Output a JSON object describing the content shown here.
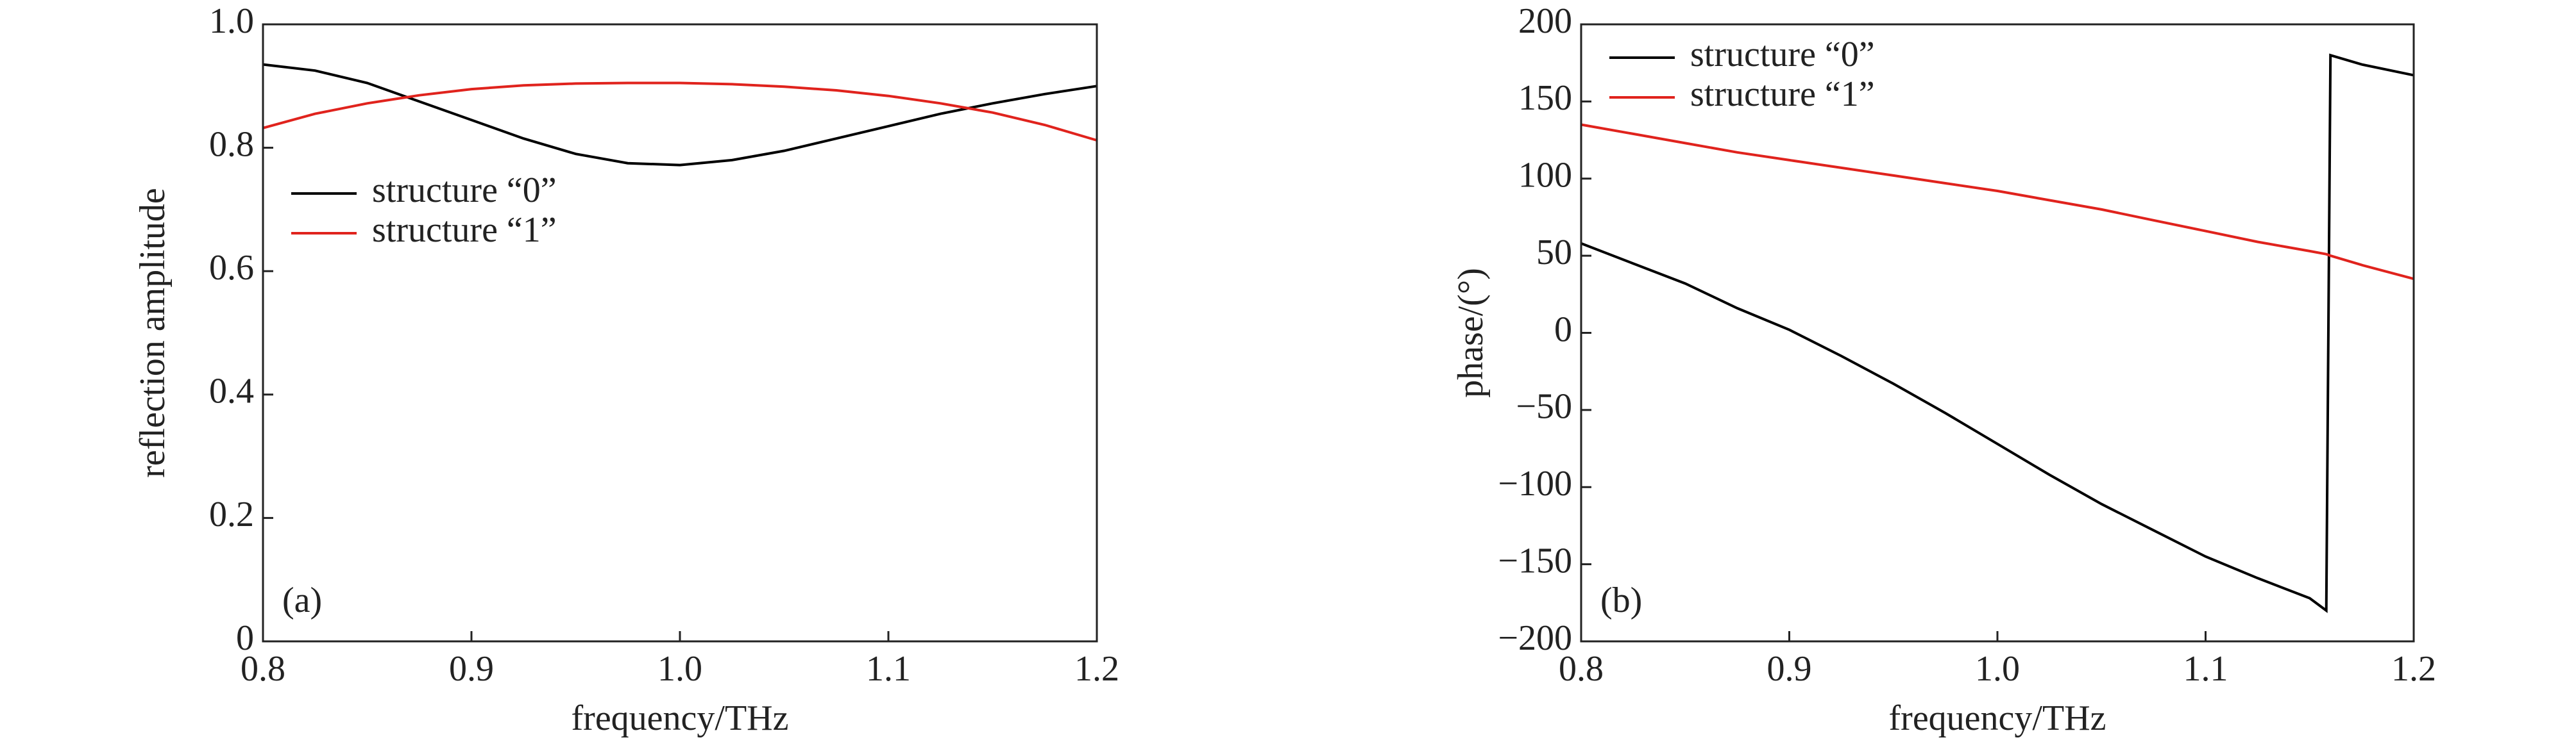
{
  "chart_data": [
    {
      "type": "line",
      "xlabel": "frequency/THz",
      "ylabel": "reflection amplitude",
      "annotation": "(a)",
      "legend": "center left",
      "x": [
        0.8,
        0.825,
        0.85,
        0.875,
        0.9,
        0.925,
        0.95,
        0.975,
        1.0,
        1.025,
        1.05,
        1.075,
        1.1,
        1.125,
        1.15,
        1.175,
        1.2
      ],
      "series": [
        {
          "name": "structure “0”",
          "color": "#000000",
          "values": [
            0.935,
            0.925,
            0.905,
            0.875,
            0.845,
            0.815,
            0.79,
            0.775,
            0.772,
            0.78,
            0.795,
            0.815,
            0.835,
            0.855,
            0.872,
            0.887,
            0.9
          ]
        },
        {
          "name": "structure “1”",
          "color": "#e0231d",
          "values": [
            0.832,
            0.855,
            0.872,
            0.885,
            0.895,
            0.901,
            0.904,
            0.905,
            0.905,
            0.903,
            0.899,
            0.893,
            0.884,
            0.872,
            0.857,
            0.837,
            0.812
          ]
        }
      ],
      "xlim": [
        0.8,
        1.2
      ],
      "xticks": [
        0.8,
        0.9,
        {
          "value": 1,
          "label": "1.0"
        },
        1.1,
        1.2
      ],
      "ylim": [
        0,
        1
      ],
      "yticks": [
        0,
        0.2,
        0.4,
        0.6,
        0.8,
        {
          "value": 1,
          "label": "1.0"
        }
      ]
    },
    {
      "type": "line",
      "xlabel": "frequency/THz",
      "ylabel": "phase/(°)",
      "annotation": "(b)",
      "legend": "upper left",
      "x": [
        0.8,
        0.825,
        0.85,
        0.875,
        0.9,
        0.925,
        0.95,
        0.975,
        1.0,
        1.025,
        1.05,
        1.075,
        1.1,
        1.125,
        1.15,
        1.158,
        1.16,
        1.175,
        1.2
      ],
      "series": [
        {
          "name": "structure “0”",
          "color": "#000000",
          "values": [
            58,
            45,
            32,
            16,
            2,
            -15,
            -33,
            -52,
            -72,
            -92,
            -111,
            -128,
            -145,
            -159,
            -172,
            -180,
            180,
            174,
            167
          ]
        },
        {
          "name": "structure “1”",
          "color": "#e0231d",
          "values": [
            135,
            129,
            123,
            117,
            112,
            107,
            102,
            97,
            92,
            86,
            80,
            73,
            66,
            59,
            53,
            51,
            50,
            44,
            35
          ]
        }
      ],
      "xlim": [
        0.8,
        1.2
      ],
      "xticks": [
        0.8,
        0.9,
        {
          "value": 1,
          "label": "1.0"
        },
        1.1,
        1.2
      ],
      "ylim": [
        -200,
        200
      ],
      "yticks": [
        {
          "value": -200,
          "label": "−200"
        },
        {
          "value": -150,
          "label": "−150"
        },
        {
          "value": -100,
          "label": "−100"
        },
        {
          "value": -50,
          "label": "−50"
        },
        0,
        50,
        100,
        150,
        200
      ]
    }
  ]
}
